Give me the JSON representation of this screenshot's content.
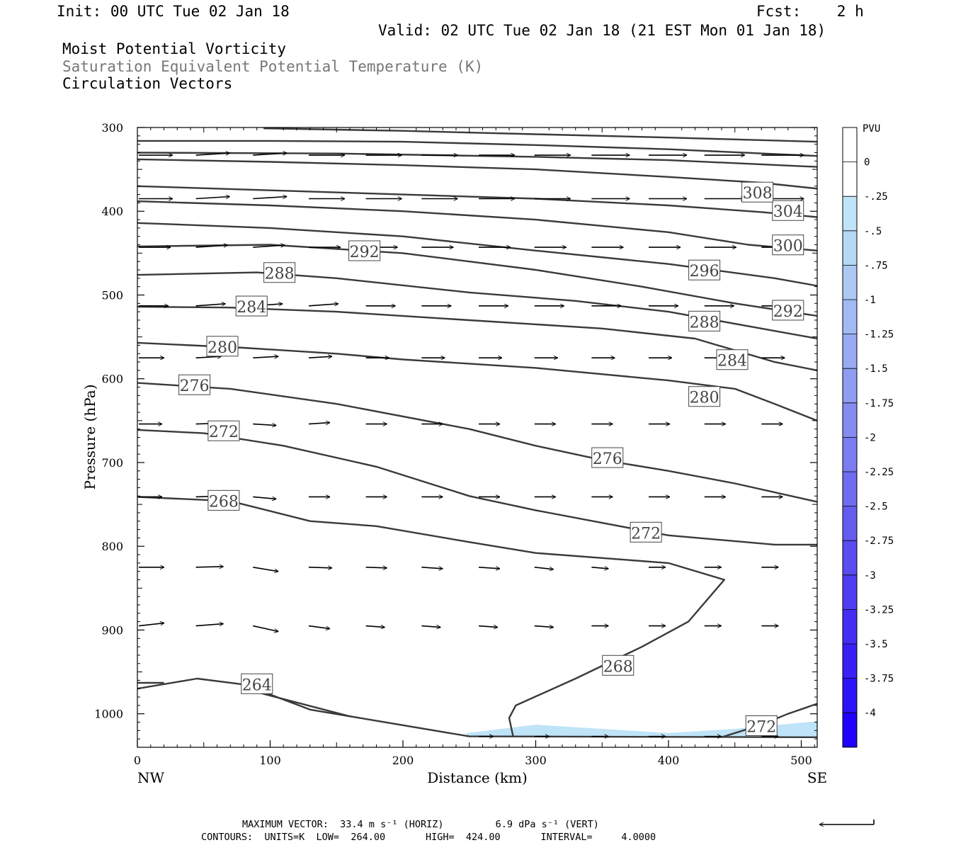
{
  "header": {
    "init": "Init: 00 UTC Tue 02 Jan 18",
    "fcst": "Fcst:    2 h",
    "valid": "Valid: 02 UTC Tue 02 Jan 18 (21 EST Mon 01 Jan 18)"
  },
  "titles": {
    "line1": "Moist Potential Vorticity",
    "line2": "Saturation Equivalent Potential Temperature (K)",
    "line3": "Circulation Vectors"
  },
  "footer": {
    "max_vector": "MAXIMUM VECTOR:  33.4 m s⁻¹ (HORIZ)         6.9 dPa s⁻¹ (VERT)",
    "contours": "CONTOURS:  UNITS=K  LOW=  264.00       HIGH=  424.00       INTERVAL=     4.0000"
  },
  "chart_data": {
    "type": "cross-section",
    "xlabel": "Distance (km)",
    "ylabel": "Pressure (hPa)",
    "xlim": [
      0,
      512
    ],
    "ylim": [
      1040,
      300
    ],
    "x_ticks": [
      0,
      100,
      200,
      300,
      400,
      500
    ],
    "y_ticks": [
      300,
      400,
      500,
      600,
      700,
      800,
      900,
      1000
    ],
    "x_end_labels": {
      "left": "NW",
      "right": "SE"
    },
    "colorbar": {
      "unit": "PVU",
      "labels": [
        "0",
        "-.25",
        "-.5",
        "-.75",
        "-1",
        "-1.25",
        "-1.5",
        "-1.75",
        "-2",
        "-2.25",
        "-2.5",
        "-2.75",
        "-3",
        "-3.25",
        "-3.5",
        "-3.75",
        "-4"
      ],
      "colors": [
        "#ffffff",
        "#ffffff",
        "#bfe3f7",
        "#b6d7f5",
        "#acc9f4",
        "#a2baf3",
        "#98abf2",
        "#8e9cf1",
        "#848cf0",
        "#7a7cef",
        "#6f6cef",
        "#655cef",
        "#5a4cf0",
        "#4f3df1",
        "#442ef3",
        "#3920f5",
        "#2c12f7",
        "#1f00fa"
      ]
    },
    "pv_shading": [
      {
        "value": -0.25,
        "polygon": [
          [
            248,
            1023
          ],
          [
            300,
            1013
          ],
          [
            350,
            1018
          ],
          [
            400,
            1023
          ],
          [
            450,
            1018
          ],
          [
            512,
            1009
          ],
          [
            512,
            1028
          ],
          [
            248,
            1028
          ]
        ]
      }
    ],
    "contours": [
      {
        "label": "264",
        "points": [
          [
            0,
            970
          ],
          [
            45,
            958
          ],
          [
            80,
            965
          ],
          [
            130,
            995
          ],
          [
            250,
            1027
          ],
          [
            512,
            1028
          ]
        ],
        "labels": [
          [
            90,
            965
          ]
        ]
      },
      {
        "label": "",
        "points": [
          [
            0,
            963
          ],
          [
            20,
            963
          ]
        ]
      },
      {
        "label": "",
        "points": [
          [
            80,
            970
          ],
          [
            160,
            1003
          ]
        ]
      },
      {
        "label": "268",
        "points": [
          [
            0,
            741
          ],
          [
            70,
            746
          ],
          [
            130,
            770
          ],
          [
            180,
            776
          ],
          [
            250,
            795
          ],
          [
            300,
            808
          ],
          [
            400,
            820
          ],
          [
            442,
            840
          ],
          [
            415,
            890
          ],
          [
            380,
            920
          ],
          [
            330,
            958
          ],
          [
            285,
            990
          ],
          [
            280,
            1005
          ],
          [
            283,
            1027
          ]
        ],
        "labels": [
          [
            65,
            746
          ],
          [
            362,
            943
          ]
        ]
      },
      {
        "label": "272",
        "points": [
          [
            0,
            661
          ],
          [
            50,
            665
          ],
          [
            110,
            680
          ],
          [
            180,
            705
          ],
          [
            250,
            740
          ],
          [
            300,
            757
          ],
          [
            400,
            787
          ],
          [
            480,
            798
          ],
          [
            512,
            798
          ]
        ],
        "labels": [
          [
            65,
            663
          ],
          [
            383,
            784
          ]
        ],
        "extra": [
          [
            [
              440,
              1028
            ],
            [
              470,
              1013
            ],
            [
              490,
              1000
            ],
            [
              512,
              988
            ]
          ]
        ],
        "extra_labels": [
          [
            470,
            1015
          ]
        ]
      },
      {
        "label": "276",
        "points": [
          [
            0,
            605
          ],
          [
            70,
            612
          ],
          [
            150,
            630
          ],
          [
            250,
            660
          ],
          [
            300,
            680
          ],
          [
            350,
            697
          ],
          [
            400,
            710
          ],
          [
            450,
            725
          ],
          [
            512,
            747
          ]
        ],
        "labels": [
          [
            43,
            608
          ],
          [
            354,
            695
          ]
        ]
      },
      {
        "label": "280",
        "points": [
          [
            0,
            557
          ],
          [
            80,
            563
          ],
          [
            150,
            570
          ],
          [
            200,
            577
          ],
          [
            300,
            587
          ],
          [
            400,
            602
          ],
          [
            450,
            612
          ],
          [
            480,
            630
          ],
          [
            512,
            650
          ]
        ],
        "labels": [
          [
            64,
            562
          ],
          [
            427,
            622
          ]
        ]
      },
      {
        "label": "284",
        "points": [
          [
            0,
            514
          ],
          [
            70,
            515
          ],
          [
            150,
            520
          ],
          [
            250,
            530
          ],
          [
            350,
            540
          ],
          [
            420,
            552
          ],
          [
            480,
            580
          ],
          [
            512,
            590
          ]
        ],
        "labels": [
          [
            86,
            514
          ],
          [
            448,
            578
          ]
        ]
      },
      {
        "label": "288",
        "points": [
          [
            0,
            476
          ],
          [
            90,
            473
          ],
          [
            150,
            480
          ],
          [
            250,
            497
          ],
          [
            330,
            507
          ],
          [
            400,
            520
          ],
          [
            470,
            540
          ],
          [
            512,
            552
          ]
        ],
        "labels": [
          [
            107,
            474
          ],
          [
            427,
            532
          ]
        ]
      },
      {
        "label": "292",
        "points": [
          [
            0,
            442
          ],
          [
            100,
            440
          ],
          [
            200,
            450
          ],
          [
            300,
            470
          ],
          [
            380,
            490
          ],
          [
            450,
            510
          ],
          [
            512,
            525
          ]
        ],
        "labels": [
          [
            171,
            448
          ],
          [
            490,
            519
          ]
        ]
      },
      {
        "label": "296",
        "points": [
          [
            0,
            414
          ],
          [
            100,
            420
          ],
          [
            200,
            430
          ],
          [
            300,
            447
          ],
          [
            400,
            463
          ],
          [
            480,
            480
          ],
          [
            512,
            489
          ]
        ],
        "labels": [
          [
            427,
            471
          ]
        ]
      },
      {
        "label": "300",
        "points": [
          [
            0,
            388
          ],
          [
            100,
            393
          ],
          [
            200,
            400
          ],
          [
            300,
            410
          ],
          [
            400,
            425
          ],
          [
            460,
            440
          ],
          [
            512,
            447
          ]
        ],
        "labels": [
          [
            490,
            441
          ]
        ]
      },
      {
        "label": "304",
        "points": [
          [
            0,
            370
          ],
          [
            100,
            375
          ],
          [
            200,
            380
          ],
          [
            300,
            385
          ],
          [
            400,
            393
          ],
          [
            470,
            401
          ],
          [
            512,
            407
          ]
        ],
        "labels": [
          [
            490,
            400
          ]
        ]
      },
      {
        "label": "308",
        "points": [
          [
            0,
            338
          ],
          [
            100,
            341
          ],
          [
            200,
            345
          ],
          [
            300,
            350
          ],
          [
            400,
            359
          ],
          [
            470,
            366
          ],
          [
            512,
            373
          ]
        ],
        "labels": [
          [
            467,
            378
          ]
        ]
      },
      {
        "label": "",
        "points": [
          [
            0,
            330
          ],
          [
            150,
            331
          ],
          [
            300,
            335
          ],
          [
            400,
            339
          ],
          [
            512,
            347
          ]
        ]
      },
      {
        "label": "",
        "points": [
          [
            0,
            316
          ],
          [
            100,
            316
          ],
          [
            200,
            317
          ],
          [
            300,
            321
          ],
          [
            400,
            326
          ],
          [
            512,
            334
          ]
        ]
      },
      {
        "label": "",
        "points": [
          [
            95,
            301
          ],
          [
            200,
            304
          ],
          [
            300,
            308
          ],
          [
            400,
            312
          ],
          [
            512,
            317
          ]
        ]
      }
    ],
    "vectors": {
      "rows": [
        {
          "p": 333,
          "x": [
            0,
            43,
            86,
            128,
            171,
            213,
            256,
            298,
            341,
            384,
            426,
            469
          ],
          "len": [
            32,
            32,
            32,
            34,
            34,
            34,
            34,
            34,
            36,
            36,
            38,
            40
          ],
          "dy": [
            0,
            -3,
            -3,
            0,
            0,
            0,
            0,
            0,
            0,
            0,
            0,
            0
          ]
        },
        {
          "p": 385,
          "x": [
            0,
            43,
            86,
            128,
            171,
            213,
            256,
            298,
            341,
            384,
            426,
            469
          ],
          "len": [
            32,
            32,
            32,
            34,
            34,
            34,
            34,
            34,
            36,
            36,
            38,
            40
          ],
          "dy": [
            0,
            -3,
            -3,
            0,
            0,
            0,
            0,
            0,
            0,
            0,
            0,
            0
          ]
        },
        {
          "p": 443,
          "x": [
            0,
            43,
            86,
            128,
            171,
            213,
            256,
            298,
            341,
            384,
            426,
            469
          ],
          "len": [
            30,
            30,
            30,
            30,
            30,
            30,
            30,
            30,
            30,
            30,
            30,
            30
          ],
          "dy": [
            0,
            -3,
            -3,
            0,
            0,
            0,
            0,
            0,
            0,
            0,
            0,
            0
          ]
        },
        {
          "p": 513,
          "x": [
            0,
            43,
            86,
            128,
            171,
            213,
            256,
            298,
            341,
            384,
            426,
            469
          ],
          "len": [
            28,
            28,
            28,
            28,
            28,
            28,
            28,
            28,
            28,
            28,
            28,
            28
          ],
          "dy": [
            0,
            -3,
            -3,
            -3,
            0,
            0,
            0,
            0,
            0,
            0,
            0,
            0
          ]
        },
        {
          "p": 575,
          "x": [
            0,
            43,
            86,
            128,
            171,
            213,
            256,
            298,
            341,
            384,
            426,
            469
          ],
          "len": [
            24,
            24,
            24,
            22,
            22,
            22,
            22,
            22,
            22,
            22,
            22,
            22
          ],
          "dy": [
            0,
            -2,
            -2,
            -2,
            0,
            0,
            0,
            0,
            0,
            0,
            0,
            0
          ]
        },
        {
          "p": 654,
          "x": [
            0,
            43,
            86,
            128,
            171,
            213,
            256,
            298,
            341,
            384,
            426,
            469
          ],
          "len": [
            22,
            22,
            22,
            20,
            20,
            20,
            20,
            20,
            20,
            20,
            20,
            20
          ],
          "dy": [
            0,
            -1,
            2,
            -2,
            0,
            0,
            0,
            0,
            0,
            0,
            0,
            0
          ]
        },
        {
          "p": 741,
          "x": [
            0,
            43,
            86,
            128,
            171,
            213,
            256,
            298,
            341,
            384,
            426,
            469
          ],
          "len": [
            22,
            22,
            22,
            20,
            20,
            20,
            20,
            20,
            20,
            20,
            20,
            20
          ],
          "dy": [
            0,
            -1,
            3,
            0,
            0,
            0,
            0,
            0,
            0,
            0,
            0,
            0
          ]
        },
        {
          "p": 825,
          "x": [
            0,
            43,
            86,
            128,
            171,
            213,
            256,
            298,
            341,
            384,
            426,
            469
          ],
          "len": [
            24,
            26,
            24,
            22,
            20,
            20,
            20,
            18,
            16,
            16,
            16,
            16
          ],
          "dy": [
            0,
            -1,
            6,
            1,
            1,
            2,
            2,
            3,
            2,
            0,
            0,
            0
          ]
        },
        {
          "p": 895,
          "x": [
            0,
            43,
            86,
            128,
            171,
            213,
            256,
            298,
            341,
            384,
            426,
            469
          ],
          "len": [
            24,
            26,
            24,
            20,
            18,
            18,
            18,
            18,
            16,
            16,
            16,
            16
          ],
          "dy": [
            -4,
            -3,
            8,
            4,
            2,
            2,
            2,
            2,
            0,
            0,
            0,
            0
          ]
        },
        {
          "p": 1027,
          "x": [
            256,
            298,
            341,
            384,
            426,
            469
          ],
          "len": [
            14,
            14,
            16,
            16,
            16,
            16
          ],
          "dy": [
            0,
            0,
            0,
            0,
            0,
            0
          ]
        }
      ]
    }
  }
}
